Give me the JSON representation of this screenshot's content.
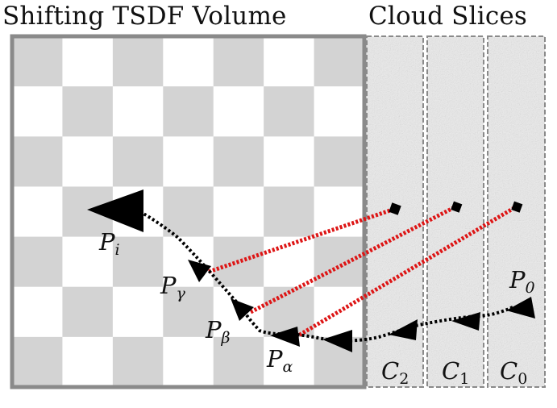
{
  "titles": {
    "volume": "Shifting TSDF Volume",
    "slices": "Cloud Slices"
  },
  "poses": [
    {
      "base": "P",
      "sub": "i"
    },
    {
      "base": "P",
      "sub": "γ"
    },
    {
      "base": "P",
      "sub": "β"
    },
    {
      "base": "P",
      "sub": "α"
    },
    {
      "base": "P",
      "sub": "0"
    }
  ],
  "slices": [
    {
      "base": "C",
      "sub": "2"
    },
    {
      "base": "C",
      "sub": "1"
    },
    {
      "base": "C",
      "sub": "0"
    }
  ],
  "colors": {
    "checker_dark": "#d3d3d3",
    "checker_light": "#ffffff",
    "volume_border": "#8a8a8a",
    "slice_fill": "#ececec",
    "slice_border": "#8a8a8a",
    "correspondence_line": "#dd1515",
    "trajectory": "#000000"
  }
}
